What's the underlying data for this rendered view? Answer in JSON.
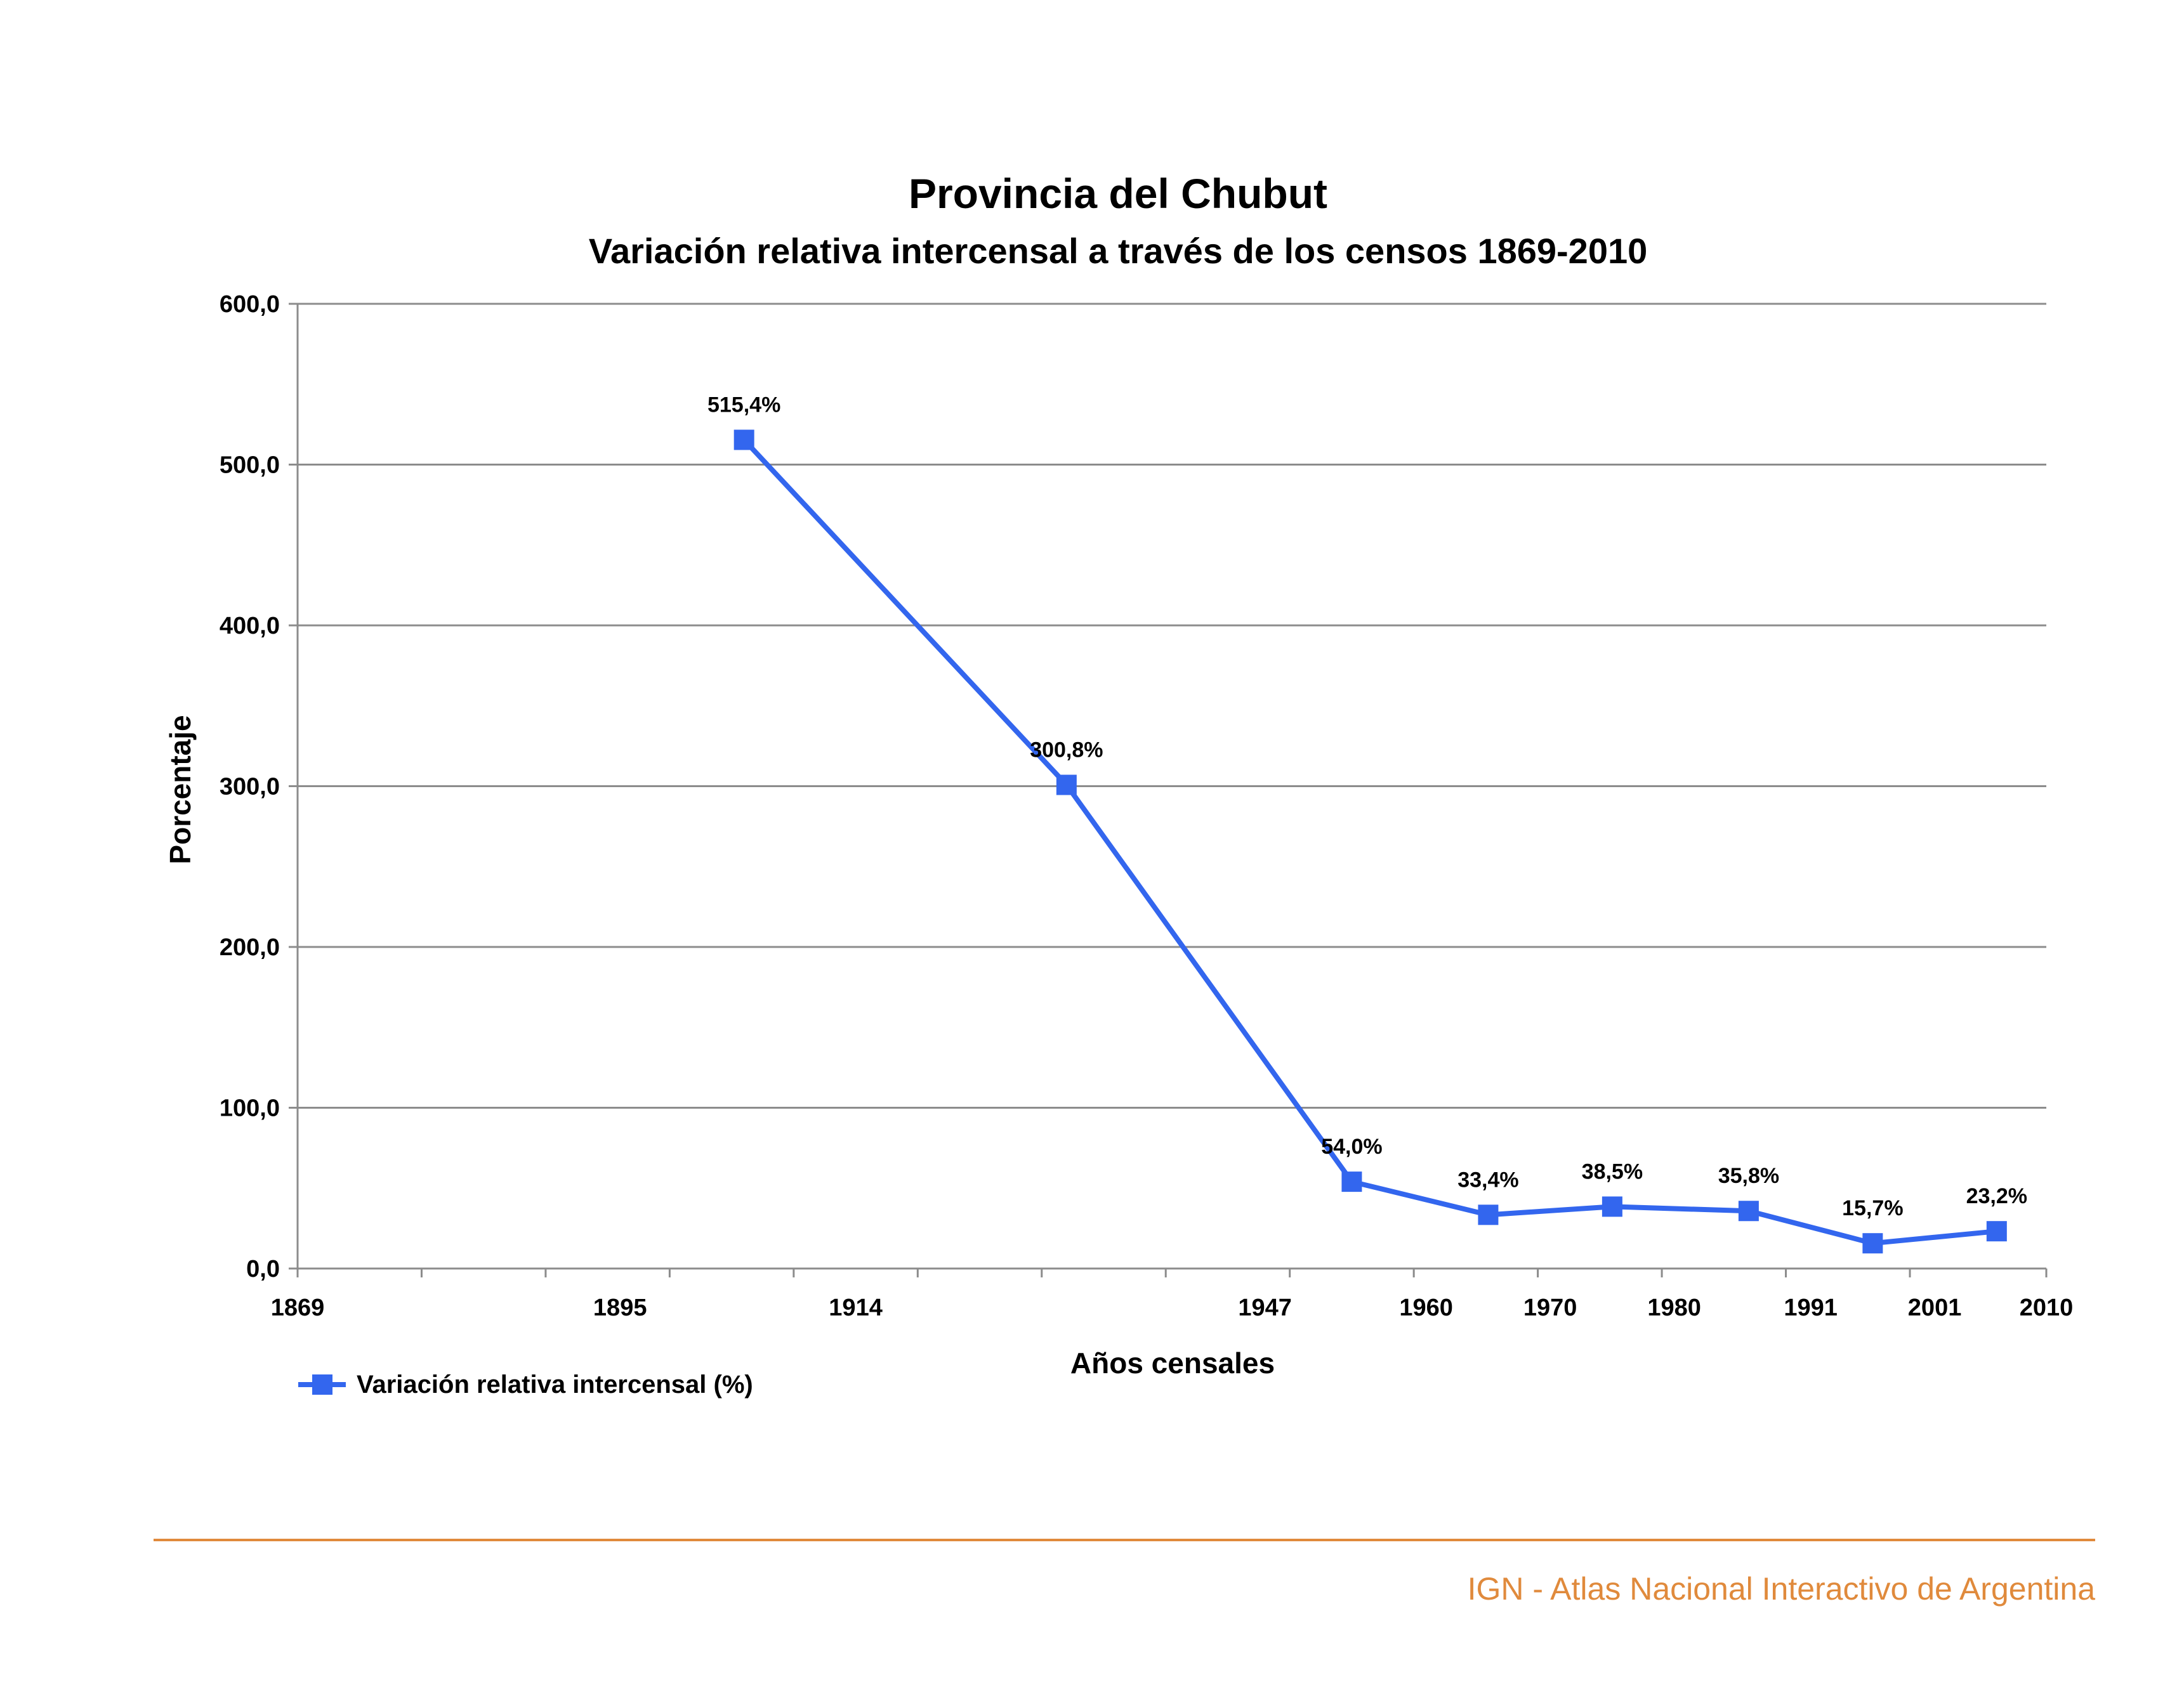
{
  "chart_data": {
    "type": "line",
    "title": "Provincia del Chubut",
    "subtitle": "Variación relativa intercensal a través de los censos 1869-2010",
    "xlabel": "Años censales",
    "ylabel": "Porcentaje",
    "ylim": [
      0,
      600
    ],
    "y_ticks": [
      {
        "value": 0,
        "label": "0,0"
      },
      {
        "value": 100,
        "label": "100,0"
      },
      {
        "value": 200,
        "label": "200,0"
      },
      {
        "value": 300,
        "label": "300,0"
      },
      {
        "value": 400,
        "label": "400,0"
      },
      {
        "value": 500,
        "label": "500,0"
      },
      {
        "value": 600,
        "label": "600,0"
      }
    ],
    "xlim": [
      1869,
      2010
    ],
    "x_tick_marks": [
      1869,
      1879,
      1889,
      1899,
      1909,
      1919,
      1929,
      1939,
      1949,
      1959,
      1969,
      1979,
      1989,
      1999,
      2010
    ],
    "x_tick_labels": [
      {
        "value": 1869,
        "label": "1869"
      },
      {
        "value": 1895,
        "label": "1895"
      },
      {
        "value": 1914,
        "label": "1914"
      },
      {
        "value": 1947,
        "label": "1947"
      },
      {
        "value": 1960,
        "label": "1960"
      },
      {
        "value": 1970,
        "label": "1970"
      },
      {
        "value": 1980,
        "label": "1980"
      },
      {
        "value": 1991,
        "label": "1991"
      },
      {
        "value": 2001,
        "label": "2001"
      },
      {
        "value": 2010,
        "label": "2010"
      }
    ],
    "grid": true,
    "legend_position": "bottom-left",
    "series": [
      {
        "name": "Variación relativa intercensal (%)",
        "color": "#3366ee",
        "points": [
          {
            "x": 1905,
            "y": 515.4,
            "label": "515,4%"
          },
          {
            "x": 1931,
            "y": 300.8,
            "label": "300,8%"
          },
          {
            "x": 1954,
            "y": 54.0,
            "label": "54,0%"
          },
          {
            "x": 1965,
            "y": 33.4,
            "label": "33,4%"
          },
          {
            "x": 1975,
            "y": 38.5,
            "label": "38,5%"
          },
          {
            "x": 1986,
            "y": 35.8,
            "label": "35,8%"
          },
          {
            "x": 1996,
            "y": 15.7,
            "label": "15,7%"
          },
          {
            "x": 2006,
            "y": 23.2,
            "label": "23,2%"
          }
        ]
      }
    ]
  },
  "footer": {
    "text": "IGN - Atlas Nacional Interactivo de Argentina",
    "color": "#e08a3c"
  }
}
